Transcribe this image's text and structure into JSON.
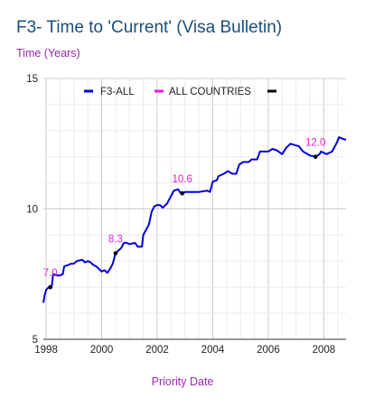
{
  "chart_data": {
    "type": "line",
    "title": "F3- Time to 'Current' (Visa Bulletin)",
    "ylabel": "Time (Years)",
    "xlabel": "Priority Date",
    "xlim": [
      1997.9,
      2008.8
    ],
    "ylim": [
      5,
      15
    ],
    "x_ticks": [
      1998,
      2000,
      2002,
      2004,
      2006,
      2008
    ],
    "y_ticks": [
      5,
      10,
      15
    ],
    "grid": true,
    "legend_position": "top",
    "series": [
      {
        "name": "F3-ALL",
        "color": "#0000dd",
        "points": [
          [
            1997.9,
            6.4
          ],
          [
            1997.95,
            6.7
          ],
          [
            1998.0,
            6.9
          ],
          [
            1998.1,
            7.0
          ],
          [
            1998.2,
            7.0
          ],
          [
            1998.25,
            7.5
          ],
          [
            1998.4,
            7.45
          ],
          [
            1998.5,
            7.45
          ],
          [
            1998.6,
            7.5
          ],
          [
            1998.65,
            7.8
          ],
          [
            1998.8,
            7.85
          ],
          [
            1998.9,
            7.9
          ],
          [
            1999.0,
            7.9
          ],
          [
            1999.1,
            8.0
          ],
          [
            1999.3,
            8.05
          ],
          [
            1999.4,
            7.95
          ],
          [
            1999.5,
            8.0
          ],
          [
            1999.6,
            7.95
          ],
          [
            1999.7,
            7.85
          ],
          [
            1999.8,
            7.8
          ],
          [
            1999.9,
            7.7
          ],
          [
            2000.0,
            7.6
          ],
          [
            2000.1,
            7.65
          ],
          [
            2000.2,
            7.55
          ],
          [
            2000.3,
            7.7
          ],
          [
            2000.4,
            7.9
          ],
          [
            2000.5,
            8.3
          ],
          [
            2000.6,
            8.4
          ],
          [
            2000.7,
            8.5
          ],
          [
            2000.8,
            8.7
          ],
          [
            2000.9,
            8.7
          ],
          [
            2001.0,
            8.65
          ],
          [
            2001.2,
            8.7
          ],
          [
            2001.3,
            8.55
          ],
          [
            2001.45,
            8.55
          ],
          [
            2001.5,
            9.0
          ],
          [
            2001.7,
            9.4
          ],
          [
            2001.8,
            9.9
          ],
          [
            2001.9,
            10.1
          ],
          [
            2002.0,
            10.15
          ],
          [
            2002.1,
            10.15
          ],
          [
            2002.2,
            10.05
          ],
          [
            2002.35,
            10.2
          ],
          [
            2002.5,
            10.5
          ],
          [
            2002.6,
            10.7
          ],
          [
            2002.75,
            10.75
          ],
          [
            2002.85,
            10.6
          ],
          [
            2002.9,
            10.55
          ],
          [
            2003.0,
            10.65
          ],
          [
            2003.5,
            10.65
          ],
          [
            2003.8,
            10.7
          ],
          [
            2003.9,
            10.65
          ],
          [
            2004.0,
            11.05
          ],
          [
            2004.15,
            11.1
          ],
          [
            2004.2,
            11.25
          ],
          [
            2004.4,
            11.35
          ],
          [
            2004.55,
            11.45
          ],
          [
            2004.7,
            11.35
          ],
          [
            2004.85,
            11.35
          ],
          [
            2004.95,
            11.7
          ],
          [
            2005.1,
            11.8
          ],
          [
            2005.3,
            11.8
          ],
          [
            2005.4,
            11.9
          ],
          [
            2005.6,
            11.9
          ],
          [
            2005.7,
            12.2
          ],
          [
            2006.0,
            12.2
          ],
          [
            2006.15,
            12.3
          ],
          [
            2006.3,
            12.25
          ],
          [
            2006.5,
            12.1
          ],
          [
            2006.65,
            12.35
          ],
          [
            2006.8,
            12.5
          ],
          [
            2006.95,
            12.45
          ],
          [
            2007.1,
            12.4
          ],
          [
            2007.25,
            12.2
          ],
          [
            2007.5,
            12.05
          ],
          [
            2007.7,
            12.0
          ],
          [
            2007.85,
            12.1
          ],
          [
            2007.9,
            12.2
          ],
          [
            2008.1,
            12.1
          ],
          [
            2008.3,
            12.2
          ],
          [
            2008.45,
            12.5
          ],
          [
            2008.55,
            12.75
          ],
          [
            2008.65,
            12.7
          ],
          [
            2008.8,
            12.65
          ]
        ]
      },
      {
        "name": "ALL COUNTRIES",
        "color": "#e020d8",
        "points": []
      },
      {
        "name": "",
        "color": "#000000",
        "points": []
      }
    ],
    "annotations": [
      {
        "x": 1998.15,
        "y": 7.0,
        "text": "7.0"
      },
      {
        "x": 2000.5,
        "y": 8.3,
        "text": "8.3"
      },
      {
        "x": 2002.9,
        "y": 10.6,
        "text": "10.6"
      },
      {
        "x": 2007.7,
        "y": 12.0,
        "text": "12.0"
      }
    ]
  }
}
